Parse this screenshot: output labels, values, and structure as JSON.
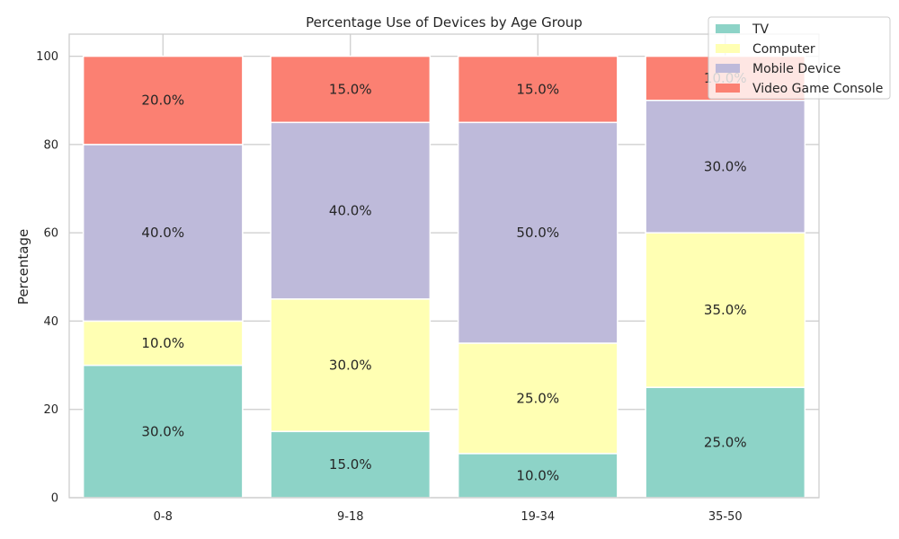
{
  "chart_data": {
    "type": "bar",
    "stacked": true,
    "title": "Percentage Use of Devices by Age Group",
    "xlabel": "",
    "ylabel": "Percentage",
    "ylim": [
      0,
      105
    ],
    "yticks": [
      0,
      20,
      40,
      60,
      80,
      100
    ],
    "categories": [
      "0-8",
      "9-18",
      "19-34",
      "35-50"
    ],
    "series": [
      {
        "name": "TV",
        "color": "#8dd3c7",
        "values": [
          30,
          15,
          10,
          25
        ],
        "labels": [
          "30.0%",
          "15.0%",
          "10.0%",
          "25.0%"
        ]
      },
      {
        "name": "Computer",
        "color": "#ffffb3",
        "values": [
          10,
          30,
          25,
          35
        ],
        "labels": [
          "10.0%",
          "30.0%",
          "25.0%",
          "35.0%"
        ]
      },
      {
        "name": "Mobile Device",
        "color": "#bebada",
        "values": [
          40,
          40,
          50,
          30
        ],
        "labels": [
          "40.0%",
          "40.0%",
          "50.0%",
          "30.0%"
        ]
      },
      {
        "name": "Video Game Console",
        "color": "#fb8072",
        "values": [
          20,
          15,
          15,
          10
        ],
        "labels": [
          "20.0%",
          "15.0%",
          "15.0%",
          "10.0%"
        ]
      }
    ],
    "grid": true,
    "legend_position": "top-right"
  }
}
